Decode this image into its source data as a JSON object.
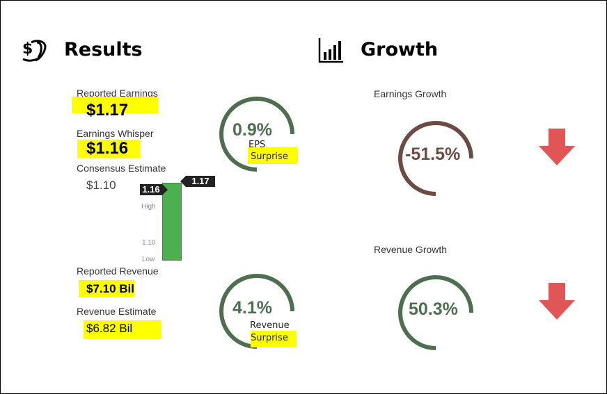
{
  "results": {
    "title": "Results",
    "icon": "money-coins-icon",
    "reported_earnings": {
      "label": "Reported Earnings",
      "value": "$1.17"
    },
    "earnings_whisper": {
      "label": "Earnings Whisper",
      "value": "$1.16"
    },
    "consensus_estimate": {
      "label": "Consensus Estimate",
      "value": "$1.10"
    },
    "range_chart": {
      "high_label": "High",
      "low_label": "Low",
      "mid_tick_label": "1.10",
      "whisper_tag": "1.16",
      "reported_tag": "1.17",
      "bar_color": "#4caf50"
    },
    "reported_revenue": {
      "label": "Reported Revenue",
      "value": "$7.10 Bil"
    },
    "revenue_estimate": {
      "label": "Revenue Estimate",
      "value": "$6.82 Bil"
    },
    "eps_gauge": {
      "value": "0.9%",
      "line1": "EPS",
      "line2": "Surprise",
      "color": "#4e6e50",
      "fraction": 0.75
    },
    "revenue_gauge": {
      "value": "4.1%",
      "line1": "Revenue",
      "line2": "Surprise",
      "color": "#4e6e50",
      "fraction": 0.75
    }
  },
  "growth": {
    "title": "Growth",
    "icon": "bar-chart-icon",
    "earnings": {
      "label": "Earnings Growth",
      "value": "-51.5%",
      "color": "#6d4b45",
      "direction": "down-arrow-icon"
    },
    "revenue": {
      "label": "Revenue Growth",
      "value": "50.3%",
      "color": "#4e6e50",
      "direction": "down-arrow-icon"
    },
    "arrow_color": "#e05555"
  }
}
